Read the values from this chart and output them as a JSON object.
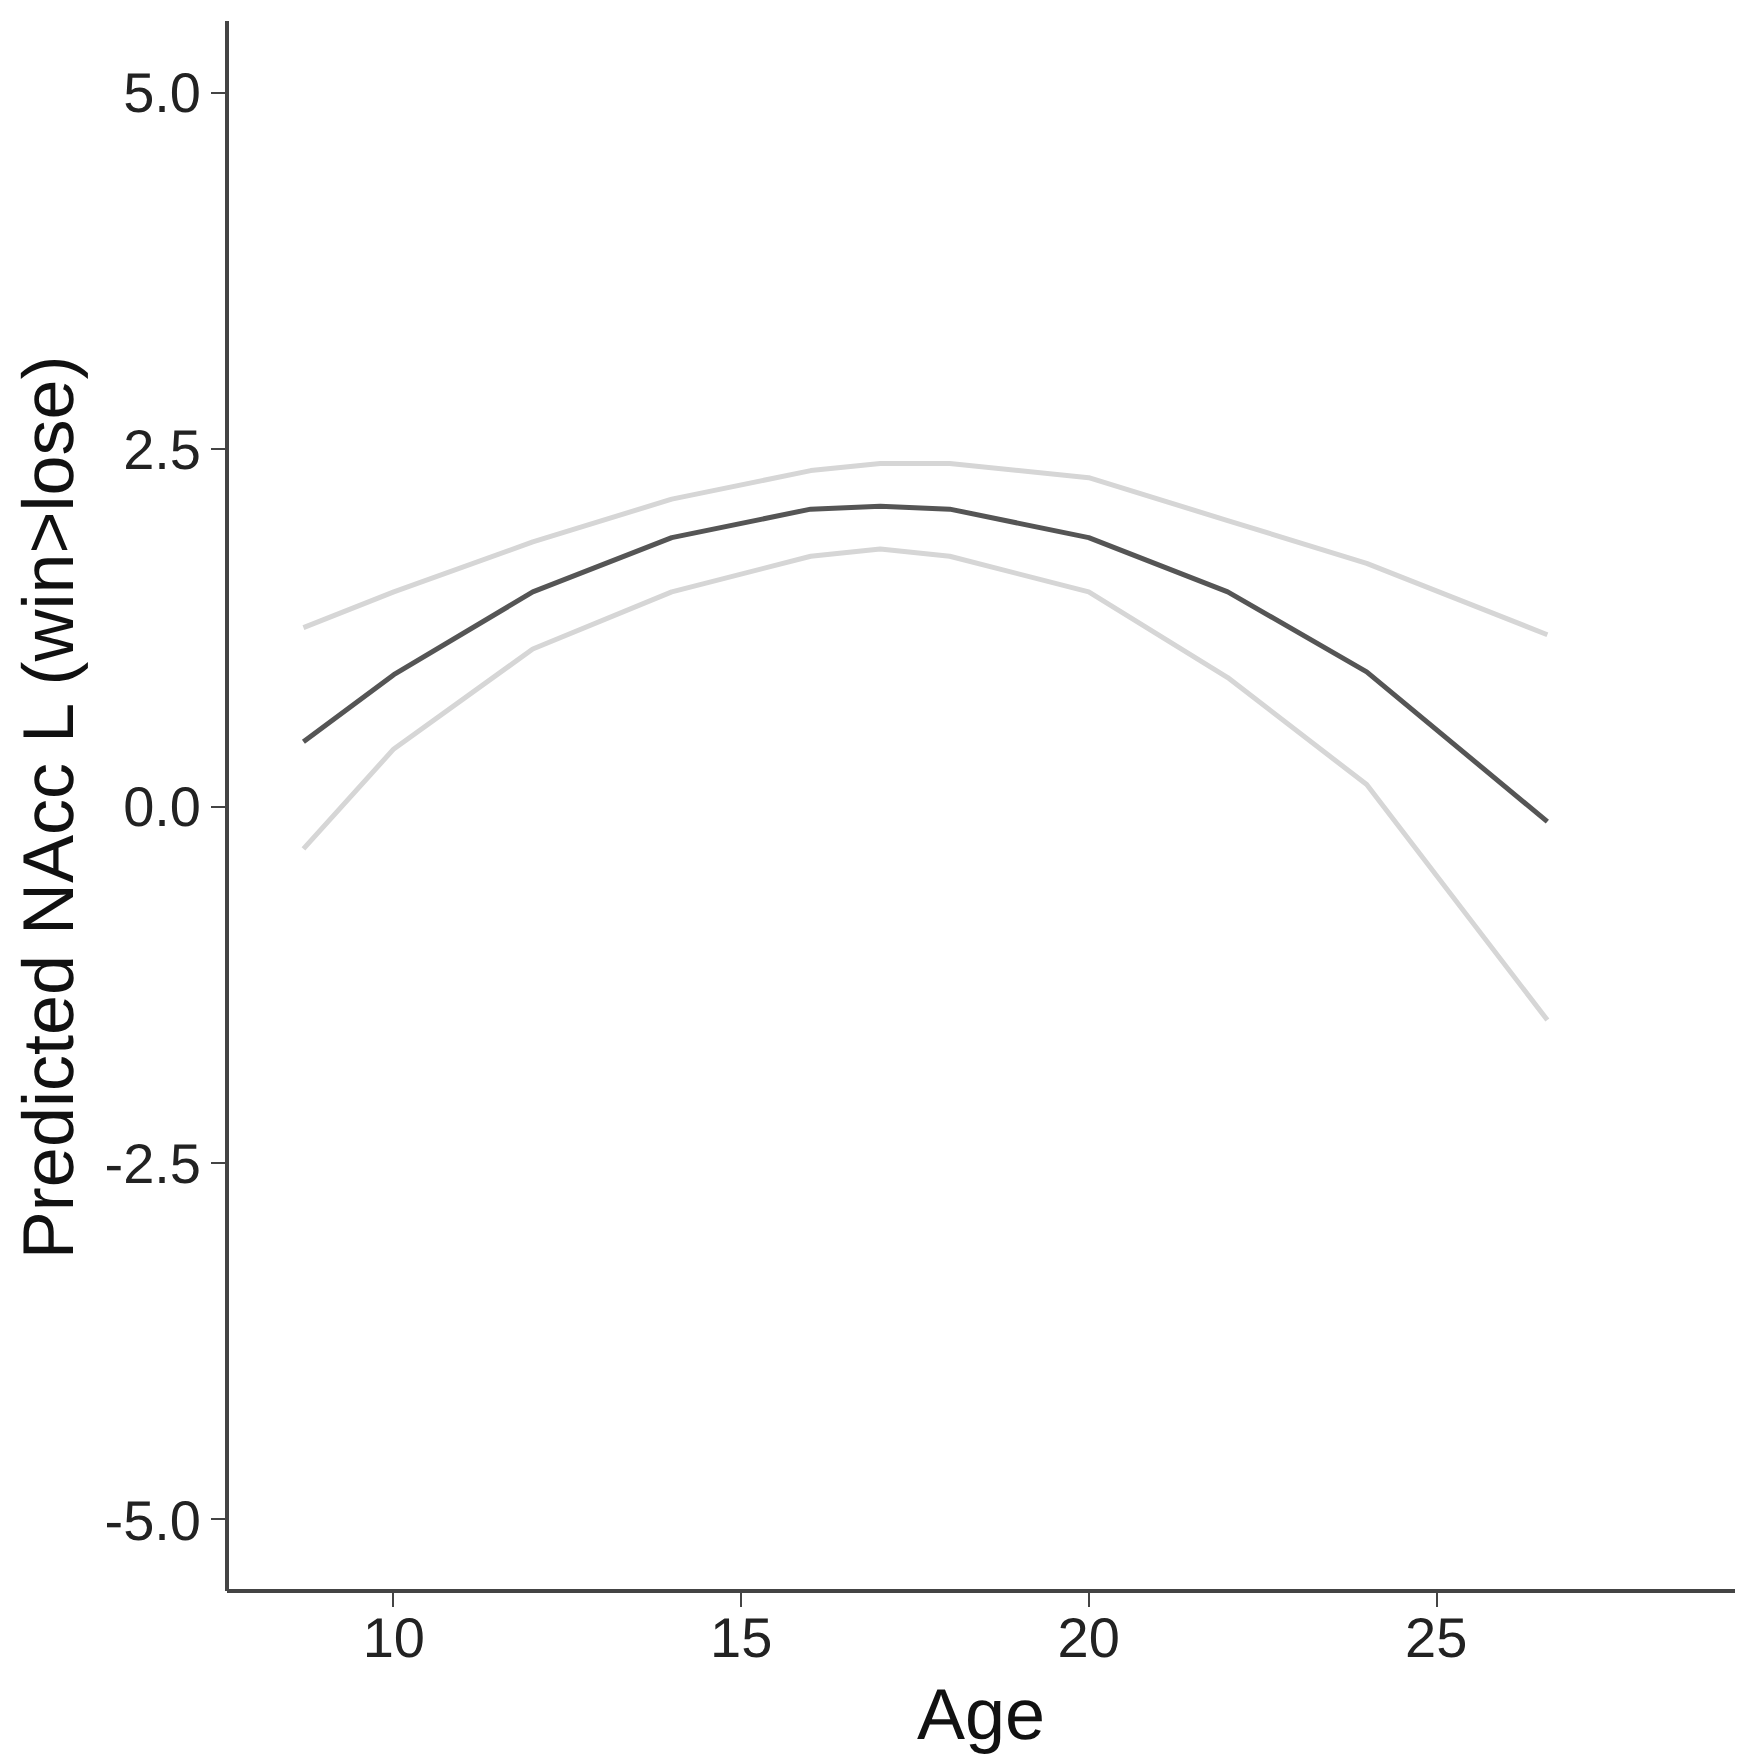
{
  "chart_data": {
    "type": "line",
    "xlabel": "Age",
    "ylabel": "Predicted NAcc L (win>lose)",
    "x": [
      8.7,
      10,
      12,
      14,
      16,
      17,
      18,
      20,
      22,
      24,
      26.6
    ],
    "series": [
      {
        "color": "#d6d6d6",
        "values": [
          1.25,
          1.5,
          1.85,
          2.15,
          2.35,
          2.4,
          2.4,
          2.3,
          2.0,
          1.7,
          1.2
        ]
      },
      {
        "color": "#d6d6d6",
        "values": [
          -0.3,
          0.4,
          1.1,
          1.5,
          1.75,
          1.8,
          1.75,
          1.5,
          0.9,
          0.15,
          -1.5
        ]
      },
      {
        "color": "#555555",
        "values": [
          0.45,
          0.92,
          1.5,
          1.88,
          2.08,
          2.1,
          2.08,
          1.88,
          1.5,
          0.94,
          -0.11
        ]
      }
    ],
    "xlim": [
      7.6,
      29.3
    ],
    "ylim": [
      -5.5,
      5.5
    ],
    "xticks": [
      10,
      15,
      20,
      25
    ],
    "yticks": [
      {
        "value": 5,
        "label": "5.0"
      },
      {
        "value": 2.5,
        "label": "2.5"
      },
      {
        "value": 0,
        "label": "0.0"
      },
      {
        "value": -2.5,
        "label": "-2.5"
      },
      {
        "value": -5,
        "label": "-5.0"
      }
    ],
    "grid": false,
    "marker": "none",
    "line_style": "solid"
  }
}
